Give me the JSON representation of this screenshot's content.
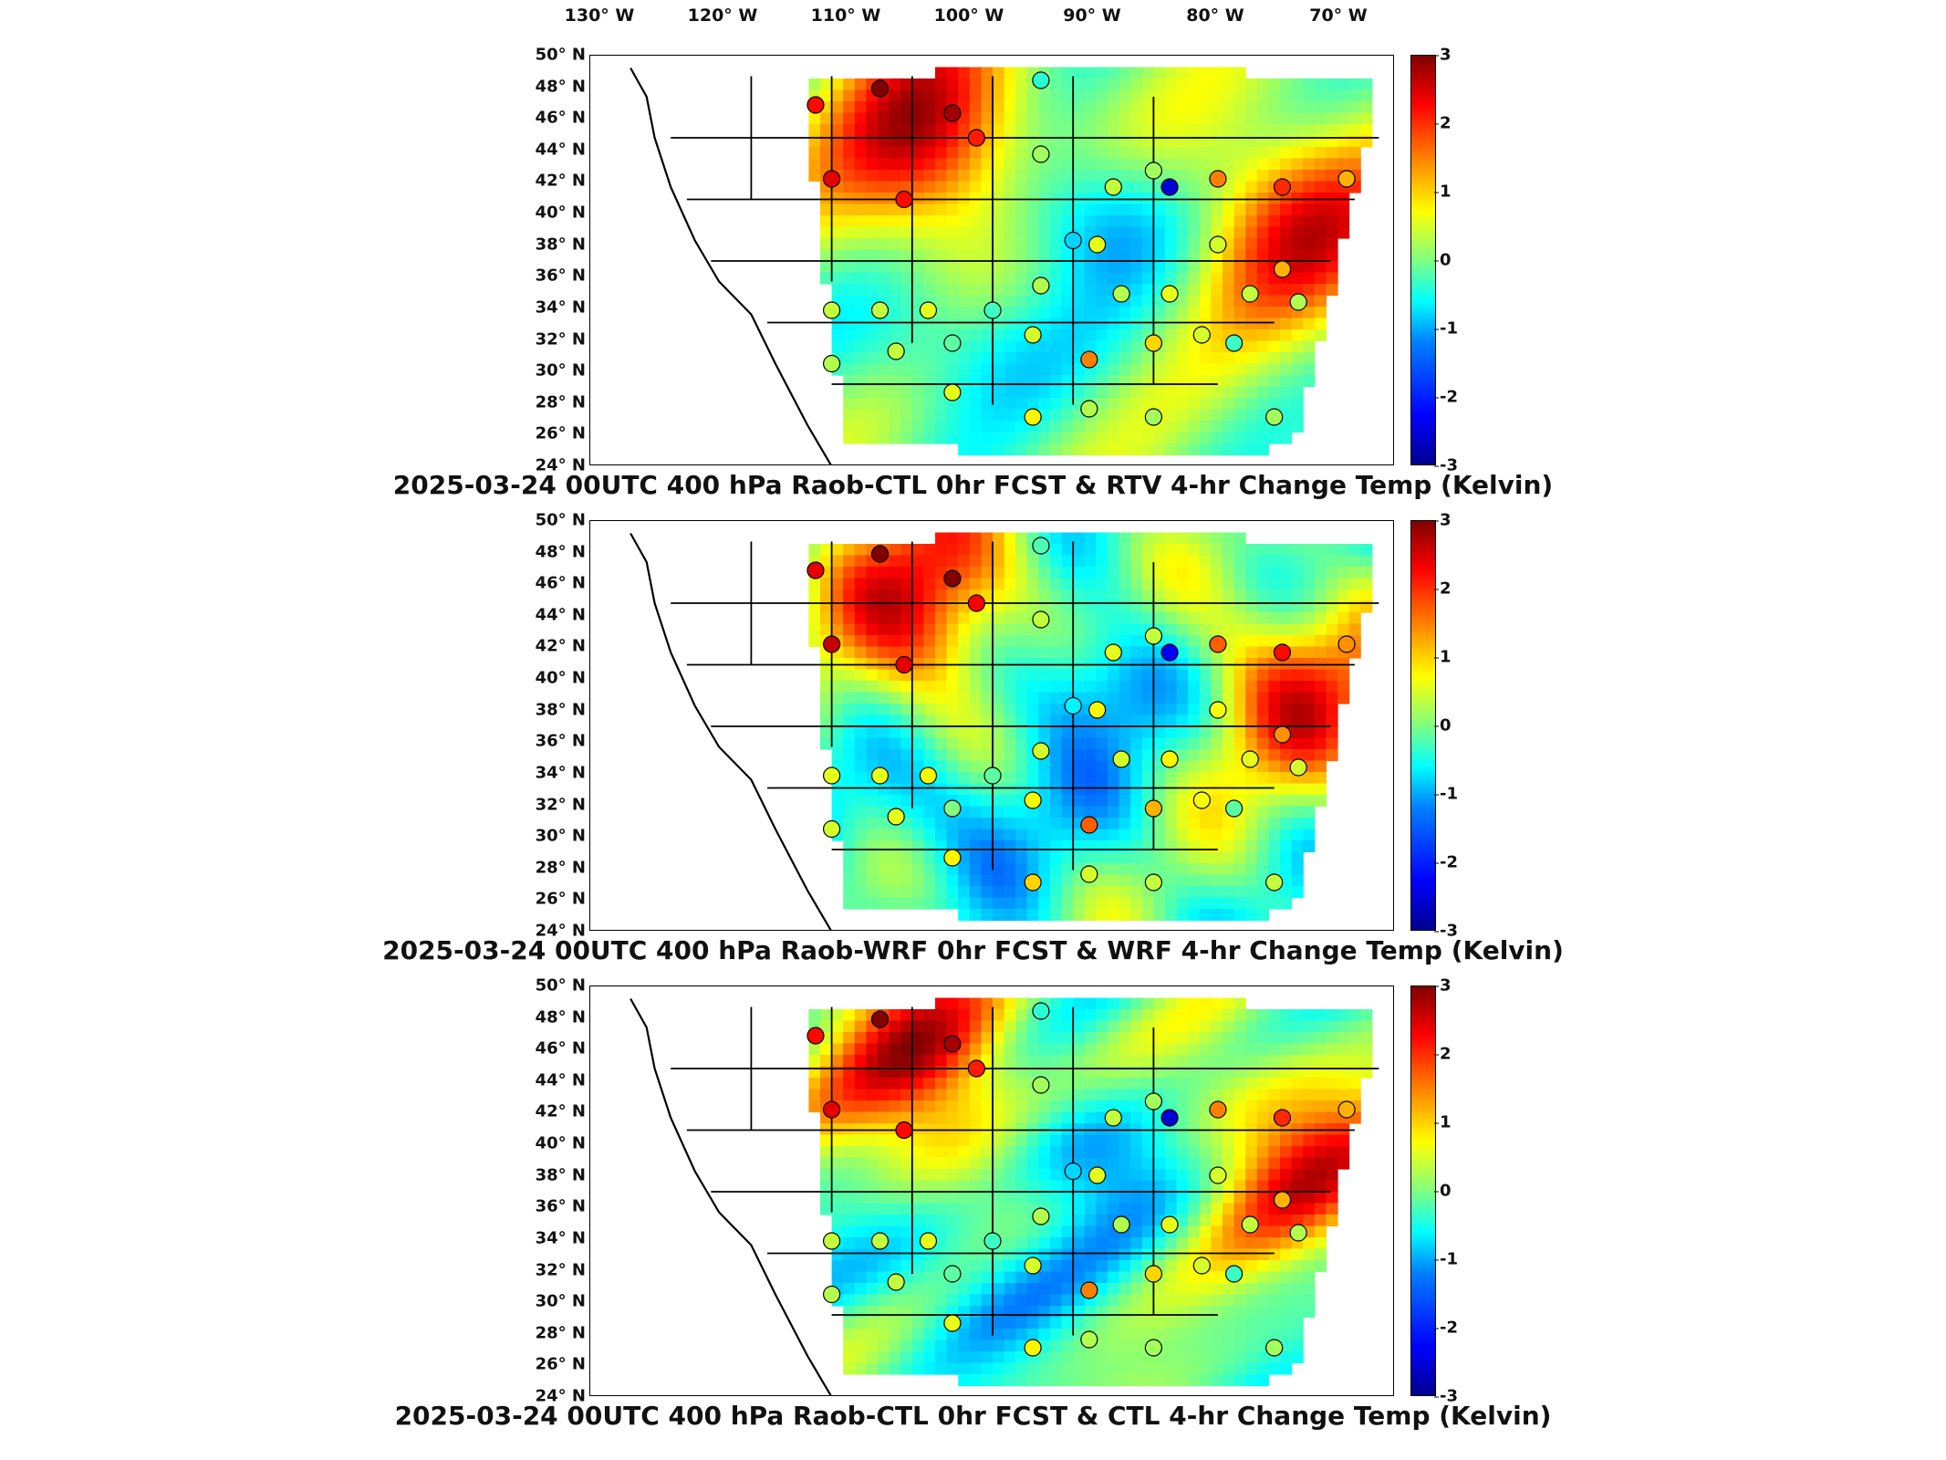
{
  "lon_labels": [
    "130° W",
    "120° W",
    "110° W",
    "100° W",
    "90° W",
    "80° W",
    "70° W"
  ],
  "lat_labels": [
    "50° N",
    "48° N",
    "46° N",
    "44° N",
    "42° N",
    "40° N",
    "38° N",
    "36° N",
    "34° N",
    "32° N",
    "30° N",
    "28° N",
    "26° N",
    "24° N"
  ],
  "colorbar": {
    "ticks": [
      "3",
      "2",
      "1",
      "0",
      "-1",
      "-2",
      "-3"
    ],
    "min": -3,
    "max": 3,
    "colormap": "jet"
  },
  "panels": [
    {
      "title": "2025-03-24 00UTC 400 hPa Raob-CTL 0hr FCST & RTV 4-hr Change Temp (Kelvin)",
      "variant": "rtv"
    },
    {
      "title": "2025-03-24 00UTC 400 hPa Raob-WRF 0hr FCST & WRF 4-hr Change Temp (Kelvin)",
      "variant": "wrf"
    },
    {
      "title": "2025-03-24 00UTC 400 hPa Raob-CTL 0hr FCST & CTL 4-hr Change Temp (Kelvin)",
      "variant": "ctl"
    }
  ],
  "colors": {
    "warm_max": "#800000",
    "warm": "#ff2000",
    "neutral": "#80ff80",
    "cool": "#00c0ff",
    "cool_max": "#0000c0"
  }
}
